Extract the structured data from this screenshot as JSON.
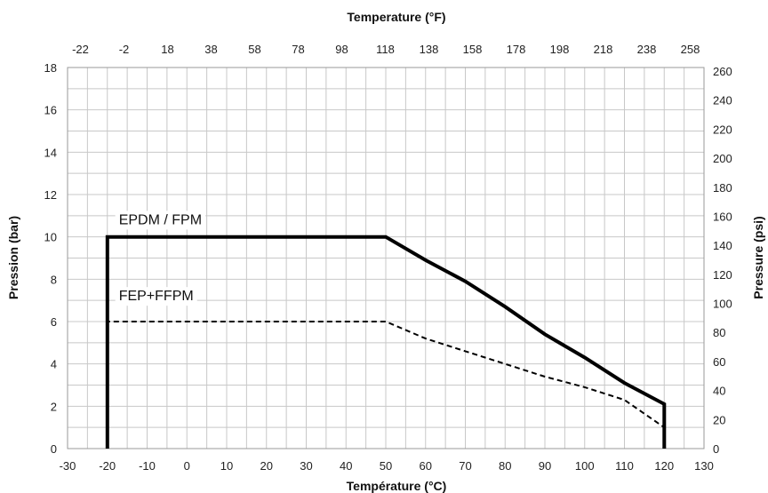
{
  "chart_data": {
    "type": "line",
    "x_bottom": {
      "label": "Température (°C)",
      "min": -30,
      "max": 130,
      "ticks": [
        -30,
        -20,
        -10,
        0,
        10,
        20,
        30,
        40,
        50,
        60,
        70,
        80,
        90,
        100,
        110,
        120,
        130
      ]
    },
    "x_top": {
      "label": "Temperature (°F)",
      "ticks": [
        "-22",
        "-2",
        "18",
        "38",
        "58",
        "78",
        "98",
        "118",
        "138",
        "158",
        "178",
        "198",
        "218",
        "238",
        "258"
      ]
    },
    "y_left": {
      "label": "Pression (bar)",
      "min": 0,
      "max": 18,
      "ticks": [
        0,
        2,
        4,
        6,
        8,
        10,
        12,
        14,
        16,
        18
      ]
    },
    "y_right": {
      "label": "Pressure (psi)",
      "ticks": [
        "0",
        "20",
        "40",
        "60",
        "80",
        "100",
        "120",
        "140",
        "160",
        "180",
        "200",
        "220",
        "240",
        "260"
      ]
    },
    "grid": true,
    "series": [
      {
        "name": "EPDM / FPM",
        "style": "solid",
        "color": "#000000",
        "points": [
          [
            -20,
            0
          ],
          [
            -20,
            10
          ],
          [
            50,
            10
          ],
          [
            60,
            8.9
          ],
          [
            70,
            7.9
          ],
          [
            80,
            6.7
          ],
          [
            90,
            5.4
          ],
          [
            100,
            4.3
          ],
          [
            110,
            3.1
          ],
          [
            120,
            2.1
          ],
          [
            120,
            0
          ]
        ]
      },
      {
        "name": "FEP+FFPM",
        "style": "dashed",
        "color": "#000000",
        "points": [
          [
            -20,
            0
          ],
          [
            -20,
            6
          ],
          [
            50,
            6
          ],
          [
            60,
            5.2
          ],
          [
            70,
            4.6
          ],
          [
            80,
            4.0
          ],
          [
            90,
            3.4
          ],
          [
            100,
            2.9
          ],
          [
            110,
            2.3
          ],
          [
            120,
            1.0
          ]
        ]
      }
    ],
    "series_label_positions": [
      {
        "series": 0,
        "x": -18,
        "y": 10.6
      },
      {
        "series": 1,
        "x": -18,
        "y": 7.0
      }
    ]
  }
}
